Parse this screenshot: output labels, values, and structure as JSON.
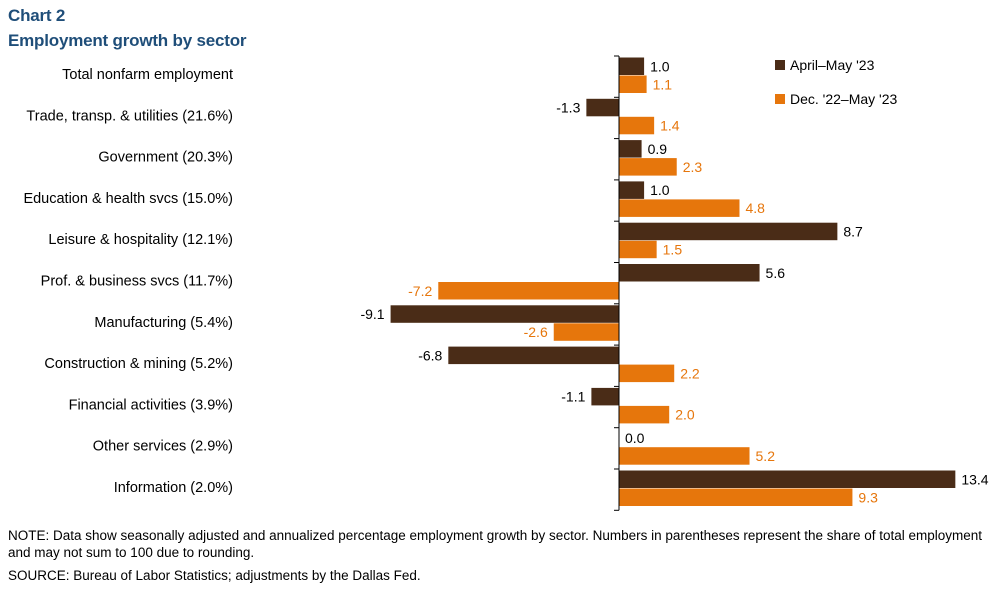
{
  "header": {
    "kicker": "Chart 2",
    "title": "Employment growth by sector"
  },
  "chart_data": {
    "type": "bar",
    "orientation": "horizontal",
    "title": "Employment growth by sector",
    "categories": [
      "Total nonfarm employment",
      "Trade, transp. & utilities (21.6%)",
      "Government (20.3%)",
      "Education & health svcs (15.0%)",
      "Leisure & hospitality (12.1%)",
      "Prof. & business svcs (11.7%)",
      "Manufacturing (5.4%)",
      "Construction & mining (5.2%)",
      "Financial activities (3.9%)",
      "Other services (2.9%)",
      "Information (2.0%)"
    ],
    "series": [
      {
        "name": "April–May '23",
        "color": "#4a2c17",
        "values": [
          1.0,
          -1.3,
          0.9,
          1.0,
          8.7,
          5.6,
          -9.1,
          -6.8,
          -1.1,
          0.0,
          13.4
        ]
      },
      {
        "name": "Dec. '22–May '23",
        "color": "#e6760c",
        "values": [
          1.1,
          1.4,
          2.3,
          4.8,
          1.5,
          -7.2,
          -2.6,
          2.2,
          2.0,
          5.2,
          9.3
        ]
      }
    ],
    "xlim": [
      -10,
      15
    ],
    "xlabel": "",
    "ylabel": "",
    "grid": false,
    "legend_position": "top-right"
  },
  "footer": {
    "note": "NOTE: Data show seasonally adjusted and annualized percentage employment growth by sector. Numbers in parentheses represent the share of total employment and may not sum to 100 due to rounding.",
    "source": "SOURCE: Bureau of Labor Statistics; adjustments by the Dallas Fed."
  }
}
